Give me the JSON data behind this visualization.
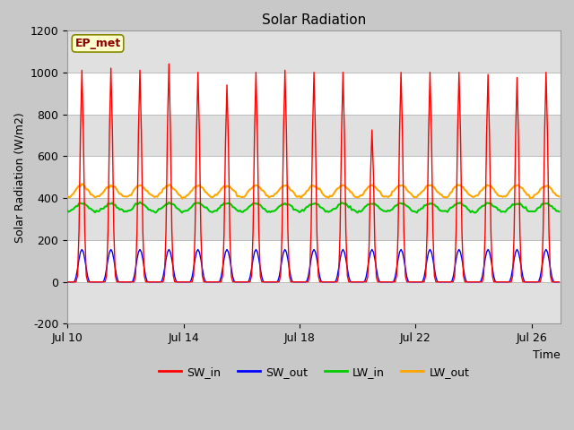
{
  "title": "Solar Radiation",
  "ylabel": "Solar Radiation (W/m2)",
  "xlabel": "Time",
  "ylim": [
    -200,
    1200
  ],
  "yticks": [
    -200,
    0,
    200,
    400,
    600,
    800,
    1000,
    1200
  ],
  "xtick_labels": [
    "Jul 10",
    "Jul 14",
    "Jul 18",
    "Jul 22",
    "Jul 26"
  ],
  "xtick_positions": [
    0,
    4,
    8,
    12,
    16
  ],
  "annotation_text": "EP_met",
  "annotation_color": "#8B0000",
  "annotation_bg": "#FFFFCC",
  "annotation_edge": "#888800",
  "fig_bg": "#C8C8C8",
  "plot_bg": "#FFFFFF",
  "stripe_color": "#E0E0E0",
  "series": {
    "SW_in": {
      "color": "#FF0000",
      "lw": 1.0
    },
    "SW_out": {
      "color": "#0000FF",
      "lw": 1.0
    },
    "LW_in": {
      "color": "#00CC00",
      "lw": 1.5
    },
    "LW_out": {
      "color": "#FFA500",
      "lw": 1.5
    }
  },
  "legend_entries": [
    "SW_in",
    "SW_out",
    "LW_in",
    "LW_out"
  ],
  "legend_colors": [
    "#FF0000",
    "#0000FF",
    "#00CC00",
    "#FFA500"
  ],
  "n_days": 17,
  "dt": 0.05
}
